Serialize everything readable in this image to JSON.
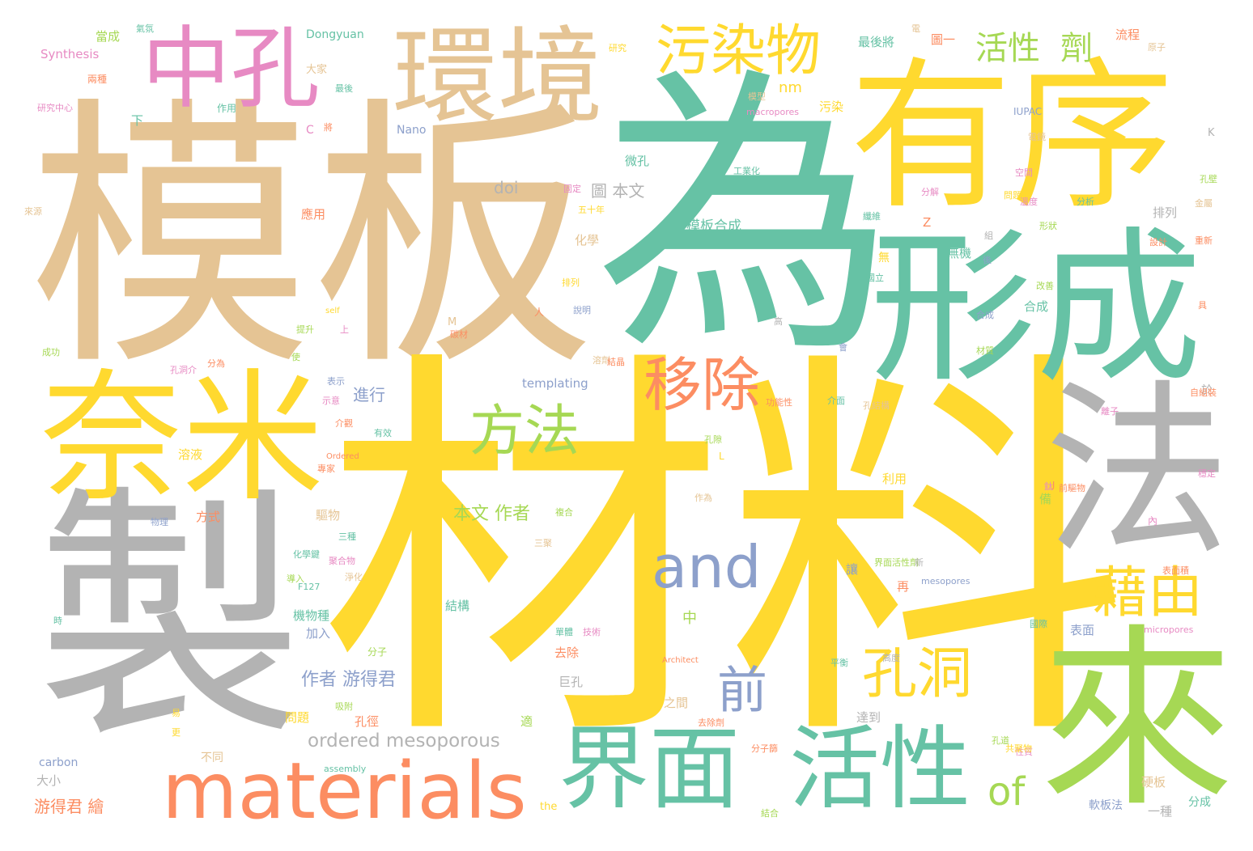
{
  "colors": {
    "tan": "#e5c494",
    "teal": "#66c2a5",
    "yellow": "#ffd92f",
    "gray": "#b3b3b3",
    "pink": "#e78ac3",
    "orange": "#fc8d62",
    "blue": "#8da0cb",
    "green": "#a6d854"
  },
  "words": [
    {
      "text": "模板",
      "color": "tan",
      "size": "xl"
    },
    {
      "text": "為",
      "color": "teal",
      "size": "xl"
    },
    {
      "text": "材料",
      "color": "yellow",
      "size": "xl"
    },
    {
      "text": "製",
      "color": "gray",
      "size": "xl"
    },
    {
      "text": "有序",
      "color": "yellow",
      "size": "l"
    },
    {
      "text": "形成",
      "color": "teal",
      "size": "l"
    },
    {
      "text": "法",
      "color": "gray",
      "size": "l"
    },
    {
      "text": "來",
      "color": "green",
      "size": "l"
    },
    {
      "text": "奈米",
      "color": "yellow",
      "size": "l"
    },
    {
      "text": "環境",
      "color": "tan",
      "size": "l"
    },
    {
      "text": "中孔",
      "color": "pink",
      "size": "l"
    },
    {
      "text": "界面",
      "color": "teal",
      "size": "m"
    },
    {
      "text": "活性",
      "color": "teal",
      "size": "m"
    },
    {
      "text": "materials",
      "color": "orange",
      "size": "m"
    },
    {
      "text": "污染物",
      "color": "yellow",
      "size": "m"
    },
    {
      "text": "移除",
      "color": "orange",
      "size": "m"
    },
    {
      "text": "方法",
      "color": "green",
      "size": "m"
    },
    {
      "text": "and",
      "color": "blue",
      "size": "m"
    },
    {
      "text": "藉由",
      "color": "yellow",
      "size": "m"
    },
    {
      "text": "孔洞",
      "color": "yellow",
      "size": "m"
    },
    {
      "text": "前",
      "color": "blue",
      "size": "m"
    },
    {
      "text": "of",
      "color": "green",
      "size": "m"
    },
    {
      "text": "活性",
      "color": "green",
      "size": "s"
    },
    {
      "text": "劑",
      "color": "green",
      "size": "s"
    },
    {
      "text": "ordered mesoporous",
      "color": "gray",
      "size": "s"
    },
    {
      "text": "作者 游得君",
      "color": "blue",
      "size": "s"
    },
    {
      "text": "本文 作者",
      "color": "green",
      "size": "s"
    },
    {
      "text": "游得君 繪",
      "color": "orange",
      "size": "s"
    },
    {
      "text": "模板合成",
      "color": "teal",
      "size": "s"
    },
    {
      "text": "進行",
      "color": "blue",
      "size": "s"
    },
    {
      "text": "圖 本文",
      "color": "gray",
      "size": "s"
    },
    {
      "text": "doi",
      "color": "gray",
      "size": "s"
    },
    {
      "text": "templating",
      "color": "blue",
      "size": "s"
    },
    {
      "text": "Synthesis",
      "color": "pink",
      "size": "s"
    },
    {
      "text": "Dongyuan",
      "color": "teal",
      "size": "s"
    },
    {
      "text": "Nano",
      "color": "blue",
      "size": "s"
    },
    {
      "text": "nm",
      "color": "yellow",
      "size": "s"
    },
    {
      "text": "IUPAC",
      "color": "blue",
      "size": "s"
    },
    {
      "text": "macropores",
      "color": "pink",
      "size": "s"
    },
    {
      "text": "mesopores",
      "color": "blue",
      "size": "s"
    },
    {
      "text": "micropores",
      "color": "pink",
      "size": "s"
    },
    {
      "text": "carbon",
      "color": "blue",
      "size": "s"
    },
    {
      "text": "assembly",
      "color": "teal",
      "size": "s"
    },
    {
      "text": "the",
      "color": "yellow",
      "size": "s"
    },
    {
      "text": "self",
      "color": "yellow",
      "size": "s"
    },
    {
      "text": "Ordered",
      "color": "orange",
      "size": "s"
    },
    {
      "text": "Architect",
      "color": "orange",
      "size": "s"
    },
    {
      "text": "F127",
      "color": "teal",
      "size": "s"
    },
    {
      "text": "最後將",
      "color": "teal",
      "size": "s"
    },
    {
      "text": "流程",
      "color": "orange",
      "size": "s"
    },
    {
      "text": "圖一",
      "color": "orange",
      "size": "s"
    },
    {
      "text": "污染",
      "color": "yellow",
      "size": "s"
    },
    {
      "text": "微孔",
      "color": "teal",
      "size": "s"
    },
    {
      "text": "應用",
      "color": "orange",
      "size": "s"
    },
    {
      "text": "化學",
      "color": "tan",
      "size": "s"
    },
    {
      "text": "無機",
      "color": "teal",
      "size": "s"
    },
    {
      "text": "排列",
      "color": "gray",
      "size": "s"
    },
    {
      "text": "合成",
      "color": "teal",
      "size": "s"
    },
    {
      "text": "溶液",
      "color": "yellow",
      "size": "s"
    },
    {
      "text": "方式",
      "color": "orange",
      "size": "s"
    },
    {
      "text": "驅物",
      "color": "tan",
      "size": "s"
    },
    {
      "text": "利用",
      "color": "yellow",
      "size": "s"
    },
    {
      "text": "結構",
      "color": "teal",
      "size": "s"
    },
    {
      "text": "機物種",
      "color": "teal",
      "size": "s"
    },
    {
      "text": "加入",
      "color": "blue",
      "size": "s"
    },
    {
      "text": "去除",
      "color": "orange",
      "size": "s"
    },
    {
      "text": "巨孔",
      "color": "gray",
      "size": "s"
    },
    {
      "text": "之間",
      "color": "tan",
      "size": "s"
    },
    {
      "text": "孔徑",
      "color": "orange",
      "size": "s"
    },
    {
      "text": "問題",
      "color": "yellow",
      "size": "s"
    },
    {
      "text": "不同",
      "color": "tan",
      "size": "s"
    },
    {
      "text": "大小",
      "color": "gray",
      "size": "s"
    },
    {
      "text": "達到",
      "color": "gray",
      "size": "s"
    },
    {
      "text": "一種",
      "color": "gray",
      "size": "s"
    },
    {
      "text": "硬板",
      "color": "tan",
      "size": "s"
    },
    {
      "text": "軟板法",
      "color": "blue",
      "size": "s"
    },
    {
      "text": "分成",
      "color": "teal",
      "size": "s"
    },
    {
      "text": "表面",
      "color": "blue",
      "size": "s"
    },
    {
      "text": "再",
      "color": "orange",
      "size": "s"
    },
    {
      "text": "中",
      "color": "green",
      "size": "s"
    },
    {
      "text": "備",
      "color": "green",
      "size": "s"
    },
    {
      "text": "當成",
      "color": "green",
      "size": "s"
    },
    {
      "text": "大家",
      "color": "tan",
      "size": "s"
    },
    {
      "text": "兩種",
      "color": "orange",
      "size": "s"
    },
    {
      "text": "作用",
      "color": "teal",
      "size": "s"
    },
    {
      "text": "下",
      "color": "teal",
      "size": "s"
    },
    {
      "text": "C",
      "color": "pink",
      "size": "s"
    },
    {
      "text": "Z",
      "color": "orange",
      "size": "s"
    },
    {
      "text": "K",
      "color": "gray",
      "size": "s"
    },
    {
      "text": "M",
      "color": "tan",
      "size": "s"
    },
    {
      "text": "L",
      "color": "yellow",
      "size": "s"
    },
    {
      "text": "無",
      "color": "yellow",
      "size": "s"
    },
    {
      "text": "適",
      "color": "green",
      "size": "s"
    },
    {
      "text": "讓",
      "color": "blue",
      "size": "s"
    },
    {
      "text": "於",
      "color": "gray",
      "size": "s"
    },
    {
      "text": "內",
      "color": "pink",
      "size": "s"
    },
    {
      "text": "三種",
      "color": "teal",
      "size": "s"
    },
    {
      "text": "三聚",
      "color": "tan",
      "size": "s"
    },
    {
      "text": "分子",
      "color": "green",
      "size": "s"
    },
    {
      "text": "國際",
      "color": "teal",
      "size": "s"
    },
    {
      "text": "國立",
      "color": "teal",
      "size": "s"
    },
    {
      "text": "高度",
      "color": "gray",
      "size": "s"
    },
    {
      "text": "平衡",
      "color": "teal",
      "size": "s"
    },
    {
      "text": "分為",
      "color": "orange",
      "size": "s"
    },
    {
      "text": "專家",
      "color": "orange",
      "size": "s"
    },
    {
      "text": "有效",
      "color": "teal",
      "size": "s"
    },
    {
      "text": "孔洞介",
      "color": "pink",
      "size": "s"
    },
    {
      "text": "工業化",
      "color": "teal",
      "size": "s"
    },
    {
      "text": "分子篩",
      "color": "orange",
      "size": "s"
    },
    {
      "text": "原子",
      "color": "tan",
      "size": "s"
    },
    {
      "text": "離子",
      "color": "pink",
      "size": "s"
    },
    {
      "text": "電鏡",
      "color": "tan",
      "size": "s"
    },
    {
      "text": "提升",
      "color": "green",
      "size": "s"
    },
    {
      "text": "上",
      "color": "pink",
      "size": "s"
    },
    {
      "text": "人",
      "color": "orange",
      "size": "s"
    },
    {
      "text": "分解",
      "color": "pink",
      "size": "s"
    },
    {
      "text": "研究中心",
      "color": "pink",
      "size": "s"
    },
    {
      "text": "表示",
      "color": "blue",
      "size": "s"
    },
    {
      "text": "示意",
      "color": "pink",
      "size": "s"
    },
    {
      "text": "說明",
      "color": "blue",
      "size": "s"
    },
    {
      "text": "氣氛",
      "color": "teal",
      "size": "s"
    },
    {
      "text": "最後",
      "color": "teal",
      "size": "s"
    },
    {
      "text": "將",
      "color": "orange",
      "size": "s"
    },
    {
      "text": "固定",
      "color": "pink",
      "size": "s"
    },
    {
      "text": "排列",
      "color": "yellow",
      "size": "s"
    },
    {
      "text": "五十年",
      "color": "yellow",
      "size": "s"
    },
    {
      "text": "介面",
      "color": "teal",
      "size": "s"
    },
    {
      "text": "作為",
      "color": "tan",
      "size": "s"
    },
    {
      "text": "孔隙",
      "color": "green",
      "size": "s"
    },
    {
      "text": "導入",
      "color": "green",
      "size": "s"
    },
    {
      "text": "成功",
      "color": "green",
      "size": "s"
    },
    {
      "text": "來源",
      "color": "tan",
      "size": "s"
    },
    {
      "text": "溶劑",
      "color": "tan",
      "size": "s"
    },
    {
      "text": "淨化",
      "color": "tan",
      "size": "s"
    },
    {
      "text": "吸附",
      "color": "green",
      "size": "s"
    },
    {
      "text": "合成",
      "color": "blue",
      "size": "s"
    },
    {
      "text": "性質",
      "color": "pink",
      "size": "s"
    },
    {
      "text": "物理",
      "color": "blue",
      "size": "s"
    },
    {
      "text": "碳材",
      "color": "orange",
      "size": "s"
    },
    {
      "text": "前驅物",
      "color": "orange",
      "size": "s"
    },
    {
      "text": "化學鍵",
      "color": "teal",
      "size": "s"
    },
    {
      "text": "界面活性劑",
      "color": "green",
      "size": "s"
    },
    {
      "text": "功能性",
      "color": "orange",
      "size": "s"
    },
    {
      "text": "自組裝",
      "color": "orange",
      "size": "s"
    },
    {
      "text": "介觀",
      "color": "orange",
      "size": "s"
    },
    {
      "text": "結晶",
      "color": "orange",
      "size": "s"
    },
    {
      "text": "去除劑",
      "color": "orange",
      "size": "s"
    },
    {
      "text": "孔道",
      "color": "green",
      "size": "s"
    },
    {
      "text": "聚合物",
      "color": "pink",
      "size": "s"
    },
    {
      "text": "共聚物",
      "color": "yellow",
      "size": "s"
    },
    {
      "text": "分析",
      "color": "teal",
      "size": "s"
    },
    {
      "text": "空間",
      "color": "pink",
      "size": "s"
    },
    {
      "text": "問題",
      "color": "yellow",
      "size": "s"
    },
    {
      "text": "孔壁",
      "color": "green",
      "size": "s"
    },
    {
      "text": "形狀",
      "color": "green",
      "size": "s"
    },
    {
      "text": "改善",
      "color": "green",
      "size": "s"
    },
    {
      "text": "金屬",
      "color": "tan",
      "size": "s"
    },
    {
      "text": "材質",
      "color": "green",
      "size": "s"
    },
    {
      "text": "重新",
      "color": "orange",
      "size": "s"
    },
    {
      "text": "溫度",
      "color": "pink",
      "size": "s"
    },
    {
      "text": "研究",
      "color": "yellow",
      "size": "s"
    },
    {
      "text": "結合",
      "color": "green",
      "size": "s"
    },
    {
      "text": "模型",
      "color": "tan",
      "size": "s"
    },
    {
      "text": "纖維",
      "color": "teal",
      "size": "s"
    },
    {
      "text": "孔結構",
      "color": "tan",
      "size": "s"
    },
    {
      "text": "穩定",
      "color": "pink",
      "size": "s"
    },
    {
      "text": "複合",
      "color": "green",
      "size": "s"
    },
    {
      "text": "技術",
      "color": "pink",
      "size": "s"
    },
    {
      "text": "單體",
      "color": "teal",
      "size": "s"
    },
    {
      "text": "鈦",
      "color": "pink",
      "size": "s"
    },
    {
      "text": "設計",
      "color": "orange",
      "size": "s"
    },
    {
      "text": "表面積",
      "color": "orange",
      "size": "s"
    },
    {
      "text": "易",
      "color": "yellow",
      "size": "s"
    },
    {
      "text": "電",
      "color": "tan",
      "size": "s"
    },
    {
      "text": "J",
      "color": "orange",
      "size": "s"
    },
    {
      "text": "具",
      "color": "orange",
      "size": "s"
    },
    {
      "text": "會",
      "color": "blue",
      "size": "s"
    },
    {
      "text": "使",
      "color": "green",
      "size": "s"
    },
    {
      "text": "新",
      "color": "gray",
      "size": "s"
    },
    {
      "text": "高",
      "color": "gray",
      "size": "s"
    },
    {
      "text": "更",
      "color": "yellow",
      "size": "s"
    },
    {
      "text": "時",
      "color": "teal",
      "size": "s"
    },
    {
      "text": "組",
      "color": "gray",
      "size": "s"
    },
    {
      "text": "後",
      "color": "blue",
      "size": "s"
    }
  ]
}
